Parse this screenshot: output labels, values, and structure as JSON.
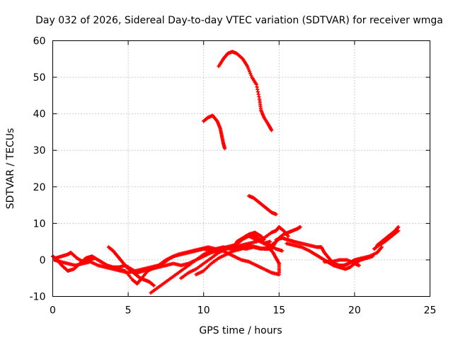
{
  "chart_data": {
    "type": "scatter",
    "title": "Day 032 of 2026, Sidereal Day-to-day VTEC variation (SDTVAR) for receiver wmga",
    "xlabel": "GPS time / hours",
    "ylabel": "SDTVAR / TECUs",
    "xlim": [
      0,
      25
    ],
    "ylim": [
      -10,
      60
    ],
    "xticks": [
      "0",
      "5",
      "10",
      "15",
      "20",
      "25"
    ],
    "yticks": [
      "-10",
      "0",
      "10",
      "20",
      "30",
      "40",
      "50",
      "60"
    ],
    "grid": true,
    "marker": "plus",
    "color": "#ff0000",
    "series": [
      {
        "name": "track-1",
        "points": [
          [
            0.0,
            1.0
          ],
          [
            0.3,
            0.0
          ],
          [
            0.6,
            -1.5
          ],
          [
            1.0,
            -3.0
          ],
          [
            1.4,
            -2.5
          ],
          [
            1.8,
            -1.0
          ],
          [
            2.2,
            0.5
          ],
          [
            2.6,
            1.0
          ],
          [
            3.0,
            0.0
          ],
          [
            3.4,
            -1.0
          ],
          [
            3.8,
            -2.0
          ],
          [
            4.3,
            -2.5
          ],
          [
            4.8,
            -3.0
          ],
          [
            5.3,
            -5.5
          ],
          [
            5.6,
            -6.5
          ],
          [
            5.9,
            -5.0
          ],
          [
            6.3,
            -3.0
          ],
          [
            6.8,
            -2.0
          ],
          [
            7.3,
            -1.0
          ],
          [
            7.8,
            0.5
          ],
          [
            8.3,
            1.5
          ],
          [
            8.8,
            2.0
          ],
          [
            9.3,
            2.5
          ],
          [
            9.8,
            3.0
          ],
          [
            10.3,
            3.5
          ],
          [
            10.8,
            3.0
          ],
          [
            11.3,
            3.5
          ],
          [
            11.8,
            3.0
          ],
          [
            12.3,
            3.5
          ],
          [
            12.8,
            3.0
          ],
          [
            13.3,
            3.5
          ],
          [
            13.8,
            3.0
          ],
          [
            14.3,
            3.5
          ],
          [
            14.8,
            5.0
          ]
        ]
      },
      {
        "name": "track-2",
        "points": [
          [
            0.1,
            0.0
          ],
          [
            0.5,
            -0.5
          ],
          [
            1.0,
            -1.0
          ],
          [
            1.5,
            -1.5
          ],
          [
            2.0,
            -1.0
          ],
          [
            2.5,
            -0.5
          ],
          [
            3.0,
            -1.5
          ],
          [
            3.5,
            -2.0
          ],
          [
            4.0,
            -2.5
          ],
          [
            4.5,
            -3.0
          ],
          [
            5.0,
            -3.5
          ],
          [
            5.5,
            -3.0
          ],
          [
            6.0,
            -2.5
          ],
          [
            6.5,
            -2.0
          ],
          [
            7.0,
            -1.5
          ],
          [
            7.5,
            0.0
          ],
          [
            8.0,
            1.0
          ],
          [
            8.5,
            1.5
          ],
          [
            9.0,
            2.0
          ],
          [
            9.5,
            2.5
          ],
          [
            10.0,
            3.0
          ],
          [
            10.5,
            2.5
          ],
          [
            11.0,
            3.0
          ],
          [
            11.5,
            2.0
          ],
          [
            12.0,
            1.0
          ],
          [
            12.5,
            0.0
          ],
          [
            13.0,
            -0.5
          ],
          [
            13.5,
            -1.5
          ],
          [
            14.0,
            -2.5
          ],
          [
            14.5,
            -3.5
          ],
          [
            15.0,
            -4.0
          ]
        ]
      },
      {
        "name": "track-3",
        "points": [
          [
            0.2,
            0.5
          ],
          [
            0.6,
            1.0
          ],
          [
            1.0,
            1.5
          ],
          [
            1.2,
            2.0
          ],
          [
            1.6,
            0.5
          ],
          [
            2.0,
            -0.5
          ],
          [
            2.4,
            0.0
          ],
          [
            2.8,
            0.5
          ],
          [
            3.2,
            -0.5
          ],
          [
            3.6,
            -1.5
          ],
          [
            4.0,
            -2.0
          ],
          [
            4.4,
            -2.0
          ],
          [
            4.8,
            -1.5
          ],
          [
            5.2,
            -2.5
          ],
          [
            5.6,
            -3.5
          ],
          [
            6.0,
            -3.0
          ],
          [
            6.5,
            -2.5
          ],
          [
            7.0,
            -2.0
          ],
          [
            7.5,
            -1.5
          ],
          [
            8.0,
            -1.0
          ],
          [
            8.5,
            -1.5
          ],
          [
            9.0,
            -1.0
          ],
          [
            9.5,
            0.0
          ],
          [
            10.0,
            1.0
          ],
          [
            10.5,
            2.0
          ],
          [
            11.0,
            2.5
          ],
          [
            11.5,
            3.0
          ],
          [
            12.0,
            4.0
          ],
          [
            12.4,
            5.0
          ],
          [
            12.8,
            6.5
          ],
          [
            13.2,
            7.0
          ],
          [
            13.6,
            6.0
          ],
          [
            14.0,
            4.5
          ],
          [
            14.4,
            4.0
          ],
          [
            14.8,
            3.0
          ],
          [
            15.2,
            2.5
          ]
        ]
      },
      {
        "name": "track-4",
        "points": [
          [
            3.7,
            3.5
          ],
          [
            4.0,
            2.5
          ],
          [
            4.3,
            1.0
          ],
          [
            4.6,
            -0.5
          ],
          [
            4.9,
            -2.0
          ],
          [
            5.2,
            -3.0
          ],
          [
            5.5,
            -4.0
          ],
          [
            5.8,
            -5.0
          ],
          [
            6.1,
            -5.5
          ],
          [
            6.4,
            -6.0
          ],
          [
            6.7,
            -7.0
          ]
        ]
      },
      {
        "name": "track-5",
        "points": [
          [
            6.5,
            -9.0
          ],
          [
            7.0,
            -7.5
          ],
          [
            7.5,
            -6.0
          ],
          [
            8.0,
            -4.5
          ],
          [
            8.5,
            -3.0
          ],
          [
            9.0,
            -1.5
          ],
          [
            9.5,
            0.0
          ],
          [
            10.0,
            1.5
          ],
          [
            10.5,
            2.5
          ],
          [
            11.0,
            3.0
          ],
          [
            11.5,
            3.5
          ],
          [
            12.0,
            4.0
          ],
          [
            12.5,
            5.5
          ],
          [
            13.0,
            6.5
          ],
          [
            13.5,
            5.5
          ],
          [
            14.0,
            4.5
          ],
          [
            14.4,
            5.0
          ]
        ]
      },
      {
        "name": "track-6",
        "points": [
          [
            8.5,
            -5.0
          ],
          [
            9.0,
            -3.5
          ],
          [
            9.5,
            -2.5
          ],
          [
            10.0,
            -1.0
          ],
          [
            10.5,
            0.5
          ],
          [
            11.0,
            2.0
          ],
          [
            11.5,
            3.0
          ],
          [
            12.0,
            3.5
          ],
          [
            12.5,
            4.0
          ],
          [
            13.0,
            4.5
          ],
          [
            13.5,
            5.0
          ],
          [
            14.0,
            6.0
          ],
          [
            14.5,
            7.5
          ],
          [
            14.8,
            8.0
          ],
          [
            15.0,
            9.0
          ],
          [
            15.3,
            8.0
          ],
          [
            15.6,
            6.5
          ]
        ]
      },
      {
        "name": "track-7",
        "points": [
          [
            9.5,
            -4.0
          ],
          [
            10.0,
            -3.0
          ],
          [
            10.5,
            -1.0
          ],
          [
            11.0,
            0.5
          ],
          [
            11.5,
            1.5
          ],
          [
            12.0,
            2.5
          ],
          [
            12.5,
            3.0
          ],
          [
            13.0,
            4.0
          ],
          [
            13.5,
            3.5
          ],
          [
            14.0,
            3.0
          ],
          [
            14.4,
            3.0
          ],
          [
            14.6,
            2.0
          ],
          [
            14.8,
            0.5
          ],
          [
            15.0,
            -1.0
          ],
          [
            15.0,
            -3.5
          ]
        ]
      },
      {
        "name": "track-8",
        "points": [
          [
            12.2,
            5.0
          ],
          [
            12.6,
            6.0
          ],
          [
            13.0,
            7.0
          ],
          [
            13.4,
            7.5
          ],
          [
            13.8,
            6.5
          ],
          [
            14.0,
            5.5
          ]
        ]
      },
      {
        "name": "track-9",
        "points": [
          [
            14.5,
            3.0
          ],
          [
            14.8,
            5.0
          ],
          [
            15.0,
            6.0
          ],
          [
            15.3,
            7.0
          ],
          [
            15.6,
            7.5
          ],
          [
            15.9,
            8.0
          ],
          [
            16.2,
            8.5
          ],
          [
            16.4,
            9.0
          ]
        ]
      },
      {
        "name": "track-10",
        "points": [
          [
            14.8,
            5.5
          ],
          [
            15.2,
            6.0
          ],
          [
            15.6,
            5.5
          ],
          [
            16.0,
            5.0
          ],
          [
            16.5,
            4.5
          ],
          [
            17.0,
            4.0
          ],
          [
            17.5,
            3.5
          ],
          [
            17.8,
            3.5
          ],
          [
            18.0,
            2.0
          ],
          [
            18.3,
            0.5
          ],
          [
            18.6,
            -1.0
          ],
          [
            19.0,
            -1.5
          ],
          [
            19.3,
            -1.5
          ],
          [
            19.6,
            -1.0
          ],
          [
            20.0,
            0.0
          ],
          [
            20.5,
            0.5
          ],
          [
            21.0,
            1.0
          ],
          [
            21.5,
            2.0
          ],
          [
            21.8,
            3.5
          ]
        ]
      },
      {
        "name": "track-11",
        "points": [
          [
            15.5,
            4.5
          ],
          [
            16.0,
            4.0
          ],
          [
            16.5,
            3.5
          ],
          [
            17.0,
            2.5
          ],
          [
            17.4,
            1.5
          ],
          [
            17.8,
            0.5
          ],
          [
            18.2,
            -0.5
          ],
          [
            18.6,
            -1.5
          ],
          [
            19.0,
            -2.0
          ],
          [
            19.4,
            -2.5
          ],
          [
            19.7,
            -2.0
          ],
          [
            20.0,
            -1.0
          ],
          [
            20.4,
            0.0
          ],
          [
            20.8,
            0.5
          ],
          [
            21.2,
            1.0
          ]
        ]
      },
      {
        "name": "track-12",
        "points": [
          [
            18.0,
            -0.5
          ],
          [
            18.5,
            -0.5
          ],
          [
            19.0,
            0.0
          ],
          [
            19.5,
            0.0
          ],
          [
            20.0,
            -1.0
          ],
          [
            20.3,
            -1.5
          ]
        ]
      },
      {
        "name": "track-13",
        "points": [
          [
            21.5,
            4.0
          ],
          [
            21.8,
            5.0
          ],
          [
            22.1,
            6.0
          ],
          [
            22.4,
            7.0
          ],
          [
            22.7,
            8.0
          ],
          [
            22.9,
            9.0
          ]
        ]
      },
      {
        "name": "track-14",
        "points": [
          [
            21.3,
            3.0
          ],
          [
            21.6,
            4.0
          ],
          [
            22.0,
            5.0
          ],
          [
            22.3,
            6.0
          ],
          [
            22.6,
            7.0
          ],
          [
            22.9,
            8.0
          ]
        ]
      },
      {
        "name": "track-15",
        "points": [
          [
            10.0,
            38.0
          ],
          [
            10.3,
            39.0
          ],
          [
            10.6,
            39.5
          ],
          [
            10.9,
            38.0
          ],
          [
            11.1,
            36.0
          ],
          [
            11.2,
            34.0
          ],
          [
            11.3,
            32.0
          ],
          [
            11.4,
            30.5
          ]
        ]
      },
      {
        "name": "track-16",
        "points": [
          [
            11.0,
            53.0
          ],
          [
            11.3,
            55.0
          ],
          [
            11.6,
            56.5
          ],
          [
            11.9,
            57.0
          ],
          [
            12.2,
            56.5
          ],
          [
            12.6,
            55.0
          ],
          [
            12.9,
            53.0
          ],
          [
            13.2,
            50.0
          ],
          [
            13.5,
            48.0
          ],
          [
            13.7,
            44.0
          ],
          [
            13.8,
            41.0
          ],
          [
            14.0,
            39.0
          ],
          [
            14.3,
            37.0
          ],
          [
            14.5,
            35.5
          ]
        ]
      },
      {
        "name": "track-17",
        "points": [
          [
            13.0,
            17.5
          ],
          [
            13.3,
            17.0
          ],
          [
            13.6,
            16.0
          ],
          [
            13.9,
            15.0
          ],
          [
            14.2,
            14.0
          ],
          [
            14.5,
            13.0
          ],
          [
            14.8,
            12.5
          ]
        ]
      }
    ]
  }
}
